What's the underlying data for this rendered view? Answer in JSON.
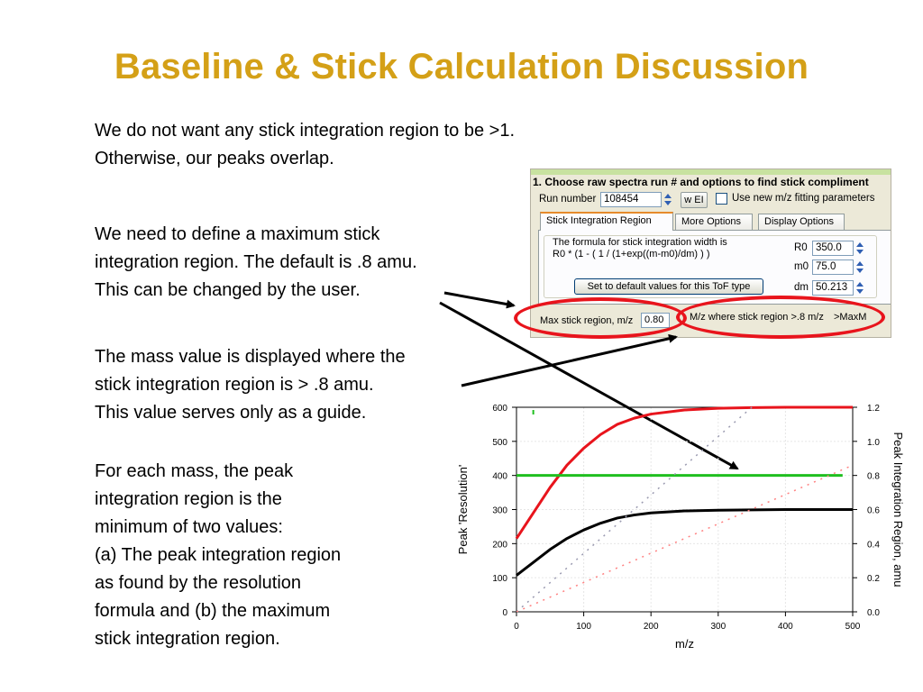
{
  "slide": {
    "title": "Baseline & Stick Calculation Discussion",
    "paragraphs": [
      [
        "We do not want any stick integration region to be >1.",
        "Otherwise, our peaks overlap."
      ],
      [
        "We need to define a maximum stick",
        "integration region.  The default is .8 amu.",
        "This can be changed by the user."
      ],
      [
        "The mass value is displayed where the",
        "stick integration region is > .8 amu.",
        "This value serves only as a guide."
      ],
      [
        "For each mass, the peak",
        "integration region is the",
        "minimum of two values:",
        "(a) The peak integration region",
        "as found by the resolution",
        "formula and (b) the maximum",
        "stick integration region."
      ]
    ]
  },
  "dialog": {
    "header": "1. Choose raw spectra run # and options to find stick compliment",
    "run_number_label": "Run number",
    "run_number_value": "108454",
    "wei_label": "w EI",
    "use_new_fit_label": "Use new m/z fitting parameters",
    "tabs": [
      "Stick Integration Region",
      "More Options",
      "Display Options"
    ],
    "formula_line1": "The formula for stick integration width is",
    "formula_line2": "R0 * (1 - ( 1 / (1+exp((m-m0)/dm) ) )",
    "r0_label": "R0",
    "r0_value": "350.0",
    "m0_label": "m0",
    "m0_value": "75.0",
    "dm_label": "dm",
    "dm_value": "50.213",
    "default_button": "Set to default values for this ToF type",
    "max_stick_label": "Max stick region, m/z",
    "max_stick_value": "0.80",
    "mz_where_label": "M/z where stick region >.8 m/z",
    "maxm_label": ">MaxM",
    "accent_color": "#e8141c"
  },
  "chart_data": {
    "type": "line",
    "xlabel": "m/z",
    "ylabel": "Peak 'Resolution'",
    "y2label": "Peak Integration Region, amu",
    "xlim": [
      0,
      500
    ],
    "ylim": [
      0,
      600
    ],
    "y2lim": [
      0.0,
      1.2
    ],
    "x_ticks": [
      "0",
      "100",
      "200",
      "300",
      "400",
      "500"
    ],
    "y_ticks": [
      "0",
      "100",
      "200",
      "300",
      "400",
      "500",
      "600"
    ],
    "y2_ticks": [
      "0.0",
      "0.2",
      "0.4",
      "0.6",
      "0.8",
      "1.0",
      "1.2"
    ],
    "grid": true,
    "series": [
      {
        "axis": "y",
        "color": "#e8141c",
        "style": "solid",
        "x": [
          0,
          25,
          50,
          75,
          100,
          125,
          150,
          175,
          200,
          250,
          300,
          350,
          400,
          450,
          500
        ],
        "y": [
          215,
          290,
          365,
          430,
          480,
          520,
          550,
          568,
          580,
          592,
          597,
          599,
          600,
          600,
          600
        ]
      },
      {
        "axis": "y",
        "color": "#000000",
        "style": "solid",
        "x": [
          0,
          25,
          50,
          75,
          100,
          125,
          150,
          175,
          200,
          250,
          300,
          350,
          400,
          450,
          500
        ],
        "y": [
          107,
          145,
          183,
          215,
          240,
          260,
          275,
          284,
          290,
          296,
          298,
          299,
          300,
          300,
          300
        ]
      },
      {
        "axis": "y2",
        "color": "#1fbf1f",
        "style": "solid",
        "x": [
          0,
          485
        ],
        "y": [
          0.8,
          0.8
        ]
      },
      {
        "axis": "y",
        "color": "#9a9ab0",
        "style": "dotted",
        "x": [
          0,
          350
        ],
        "y": [
          0,
          600
        ]
      },
      {
        "axis": "y",
        "color": "#ff8080",
        "style": "dotted",
        "x": [
          0,
          500
        ],
        "y": [
          0,
          430
        ]
      }
    ]
  }
}
